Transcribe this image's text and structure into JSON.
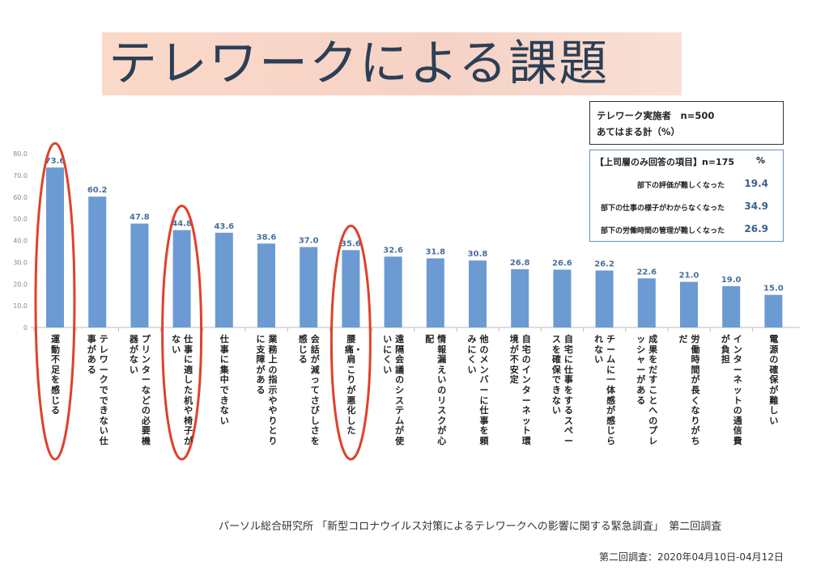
{
  "title": "テレワークによる課題",
  "info_box": {
    "line1": "テレワーク実施者　n=500",
    "line2": "あてはまる計（%）"
  },
  "sub_box": {
    "header": "【上司層のみ回答の項目】n=175",
    "unit": "%",
    "items": [
      {
        "label": "部下の評価が難しくなった",
        "value": "19.4"
      },
      {
        "label": "部下の仕事の様子がわからなくなった",
        "value": "34.9"
      },
      {
        "label": "部下の労働時間の管理が難しくなった",
        "value": "26.9"
      }
    ]
  },
  "source": "パーソル総合研究所 「新型コロナウイルス対策によるテレワークへの影響に関する緊急調査」　第二回調査",
  "survey_date": "第二回調査：2020年04月10日-04月12日",
  "colors": {
    "bar": "#6b9bd2",
    "value_label": "#4a6f9c",
    "highlight": "#e0412b"
  },
  "chart_data": {
    "type": "bar",
    "ylim": [
      0,
      80
    ],
    "yticks": [
      "0",
      "10.0",
      "20.0",
      "30.0",
      "40.0",
      "50.0",
      "60.0",
      "70.0",
      "80.0"
    ],
    "categories": [
      "運動不足を感じる",
      "テレワークでできない仕事がある",
      "プリンターなどの必要機器がない",
      "仕事に適した机や椅子がない",
      "仕事に集中できない",
      "業務上の指示ややりとりに支障がある",
      "会話が減ってさびしさを感じる",
      "腰痛・肩こりが悪化した",
      "遠隔会議のシステムが使いにくい",
      "情報漏えいのリスクが心配",
      "他のメンバーに仕事を頼みにくい",
      "自宅のインターネット環境が不安定",
      "自宅に仕事をするスペースを確保できない",
      "チームに一体感が感じられない",
      "成果をだすことへのプレッシャーがある",
      "労働時間が長くなりがちだ",
      "インターネットの通信費が負担",
      "電源の確保が難しい"
    ],
    "values": [
      73.6,
      60.2,
      47.8,
      44.8,
      43.6,
      38.6,
      37.0,
      35.6,
      32.6,
      31.8,
      30.8,
      26.8,
      26.6,
      26.2,
      22.6,
      21.0,
      19.0,
      15.0
    ],
    "value_labels": [
      "73.6",
      "60.2",
      "47.8",
      "44.8",
      "43.6",
      "38.6",
      "37.0",
      "35.6",
      "32.6",
      "31.8",
      "30.8",
      "26.8",
      "26.6",
      "26.2",
      "22.6",
      "21.0",
      "19.0",
      "15.0"
    ],
    "highlighted_categories": [
      "運動不足を感じる",
      "仕事に適した机や椅子がない",
      "腰痛・肩こりが悪化した"
    ]
  }
}
